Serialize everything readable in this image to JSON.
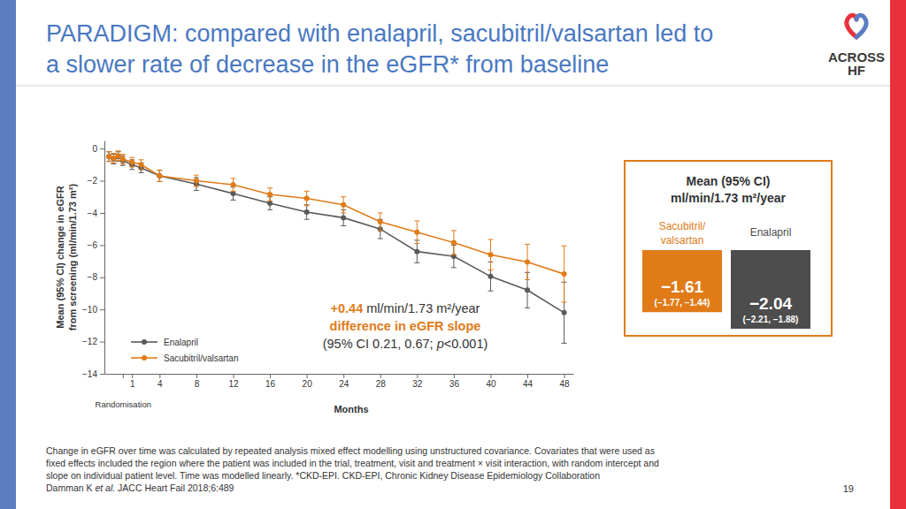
{
  "slide": {
    "title": [
      "PARADIGM: compared with enalapril, sacubitril/valsartan led to",
      "a slower rate of decrease in the eGFR* from baseline"
    ],
    "logo": [
      "ACROSS",
      "HF"
    ],
    "footnote": [
      "Change in eGFR over time was calculated by repeated analysis mixed effect modelling using unstructured covariance. Covariates that were used as",
      "fixed effects included the region where the patient was included in the trial, treatment, visit and treatment × visit interaction, with random intercept and",
      "slope on individual patient level. Time was modelled linearly. *CKD-EPI. CKD-EPI, Chronic Kidney Disease Epidemiology Collaboration"
    ],
    "reference": [
      "Damman K ",
      "et al.",
      " JACC Heart Fail 2018;6:489"
    ],
    "page_number": "19"
  },
  "chart_data": [
    {
      "type": "line",
      "x_label": "Months",
      "y_label": [
        "Mean (95% CI) change in eGFR",
        "from screening (ml/min/1.73 m²)"
      ],
      "x": [
        -1.5,
        -1,
        -0.5,
        0,
        1,
        2,
        4,
        8,
        12,
        16,
        20,
        24,
        28,
        32,
        36,
        40,
        44,
        48
      ],
      "xlim": [
        -2,
        49
      ],
      "xticks": [
        {
          "value": 0,
          "label": "Randomisation"
        },
        1,
        4,
        8,
        12,
        16,
        20,
        24,
        28,
        32,
        36,
        40,
        44,
        48
      ],
      "ylim": [
        -14,
        0.5
      ],
      "yticks": [
        0,
        {
          "value": -2,
          "label": "−2"
        },
        {
          "value": -4,
          "label": "−4"
        },
        {
          "value": -6,
          "label": "−6"
        },
        {
          "value": -8,
          "label": "−8"
        },
        {
          "value": -10,
          "label": "−10"
        },
        {
          "value": -12,
          "label": "−12"
        },
        {
          "value": -14,
          "label": "−14"
        }
      ],
      "grid": false,
      "legend": "lower left",
      "marker": "circle",
      "series": [
        {
          "name": "Enalapril",
          "color": "#5a5a5a",
          "values": [
            -0.5,
            -0.65,
            -0.5,
            -0.75,
            -1.0,
            -1.2,
            -1.7,
            -2.2,
            -2.8,
            -3.4,
            -3.95,
            -4.3,
            -5.0,
            -6.4,
            -6.7,
            -7.95,
            -8.8,
            -10.2
          ],
          "errors": [
            0.3,
            0.3,
            0.3,
            0.3,
            0.3,
            0.3,
            0.35,
            0.4,
            0.4,
            0.4,
            0.45,
            0.5,
            0.6,
            0.7,
            0.7,
            0.9,
            1.1,
            1.9
          ]
        },
        {
          "name": "Sacubitril/valsartan",
          "color": "#e07b18",
          "values": [
            -0.5,
            -0.6,
            -0.45,
            -0.65,
            -0.85,
            -1.0,
            -1.7,
            -2.0,
            -2.25,
            -2.85,
            -3.1,
            -3.5,
            -4.55,
            -5.2,
            -5.85,
            -6.6,
            -7.05,
            -7.8
          ],
          "errors": [
            0.3,
            0.3,
            0.3,
            0.3,
            0.3,
            0.3,
            0.35,
            0.35,
            0.4,
            0.4,
            0.45,
            0.5,
            0.55,
            0.7,
            0.75,
            0.95,
            1.1,
            1.75
          ]
        }
      ],
      "annotation": [
        [
          "+0.44",
          " ml/min/1.73 m²/year"
        ],
        [
          "difference in eGFR slope"
        ],
        [
          "(95% CI 0.21, 0.67; ",
          "p",
          "<0.001)"
        ]
      ]
    },
    {
      "type": "bar",
      "title": [
        "Mean (95% CI)",
        "ml/min/1.73 m²/year"
      ],
      "categories": [
        "Sacubitril/ valsartan",
        "Enalapril"
      ],
      "values": [
        -1.61,
        -2.04
      ],
      "value_labels": [
        "−1.61",
        "−2.04"
      ],
      "ci_labels": [
        "(−1.77, −1.44)",
        "(−2.21, −1.88)"
      ],
      "colors": [
        "#e07b18",
        "#4d4d4d"
      ],
      "ylim": [
        0,
        -2.04
      ],
      "tick_labels": false,
      "data_labels": true
    }
  ]
}
